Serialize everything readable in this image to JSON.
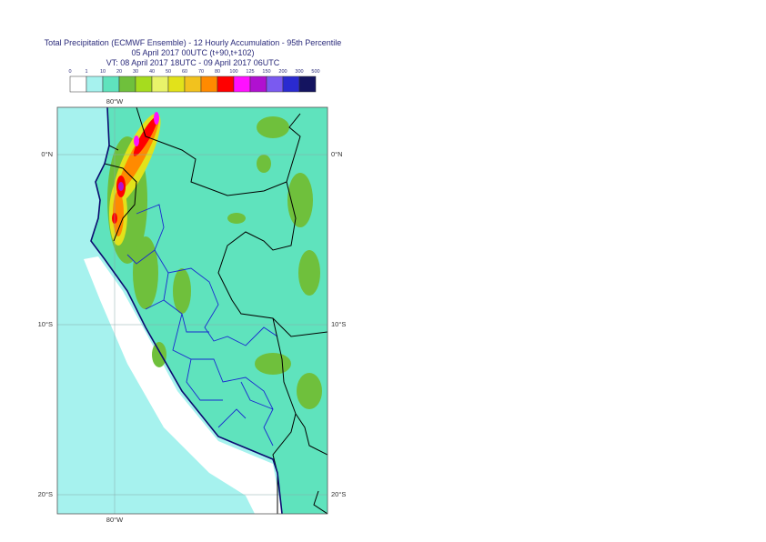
{
  "title": [
    "Total Precipitation (ECMWF Ensemble) - 12 Hourly Accumulation - 95th Percentile",
    "05 April 2017 00UTC (t+90,t+102)",
    "VT: 08 April 2017 18UTC - 09 April 2017 06UTC"
  ],
  "legend": {
    "labels": [
      0,
      1,
      10,
      20,
      30,
      40,
      50,
      60,
      70,
      80,
      100,
      125,
      150,
      200,
      300,
      500
    ],
    "colors": [
      "#ffffff",
      "#a6f2ee",
      "#5fe3bd",
      "#6fc03c",
      "#a6dc1e",
      "#e8f36a",
      "#e2e21a",
      "#f2c21e",
      "#ff8a00",
      "#ff0000",
      "#ff10ff",
      "#b010d0",
      "#7a5af0",
      "#2a2ad0",
      "#141460"
    ]
  },
  "map": {
    "lon_labels": [
      "80°W",
      "80°W"
    ],
    "lat_labels_left": [
      "0°N",
      "10°S",
      "20°S"
    ],
    "lat_labels_right": [
      "0°N",
      "10°S",
      "20°S"
    ]
  }
}
